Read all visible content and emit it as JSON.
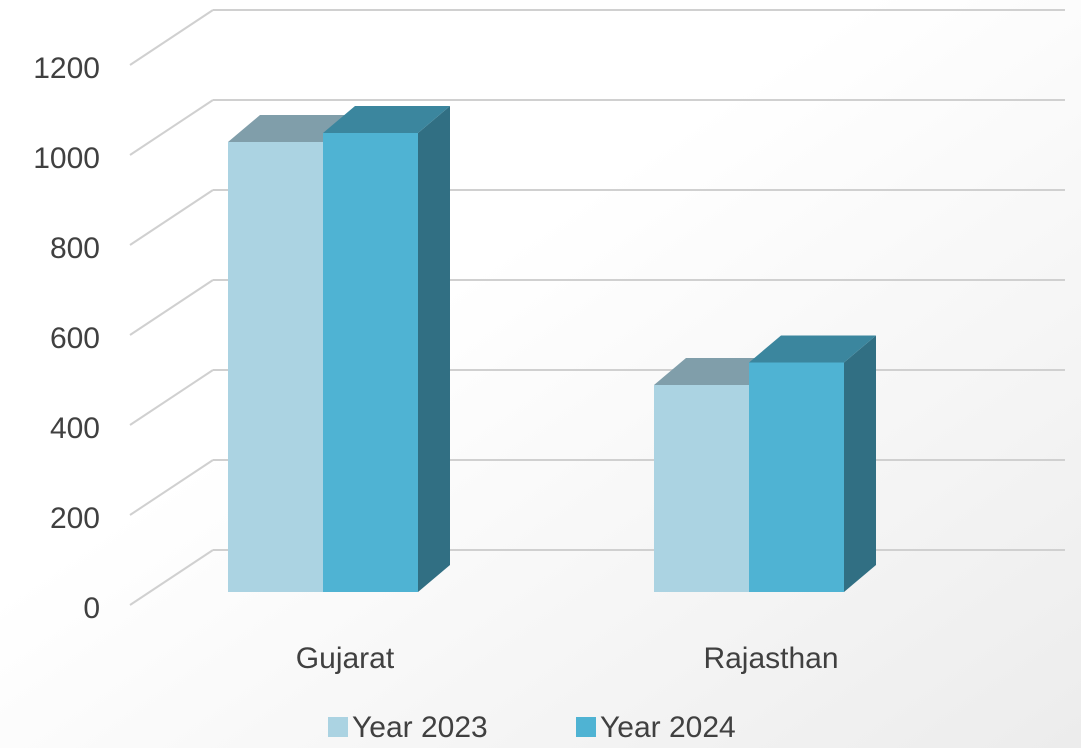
{
  "chart_data": {
    "type": "bar3d",
    "categories": [
      "Gujarat",
      "Rajasthan"
    ],
    "series": [
      {
        "name": "Year 2023",
        "color": "#abd3e2",
        "values": [
          1000,
          460
        ]
      },
      {
        "name": "Year 2024",
        "color": "#4fb3d3",
        "values": [
          1020,
          510
        ]
      }
    ],
    "ylim": [
      0,
      1200
    ],
    "yticks": [
      0,
      200,
      400,
      600,
      800,
      1000,
      1200
    ],
    "grid": true,
    "legend": "bottom"
  }
}
